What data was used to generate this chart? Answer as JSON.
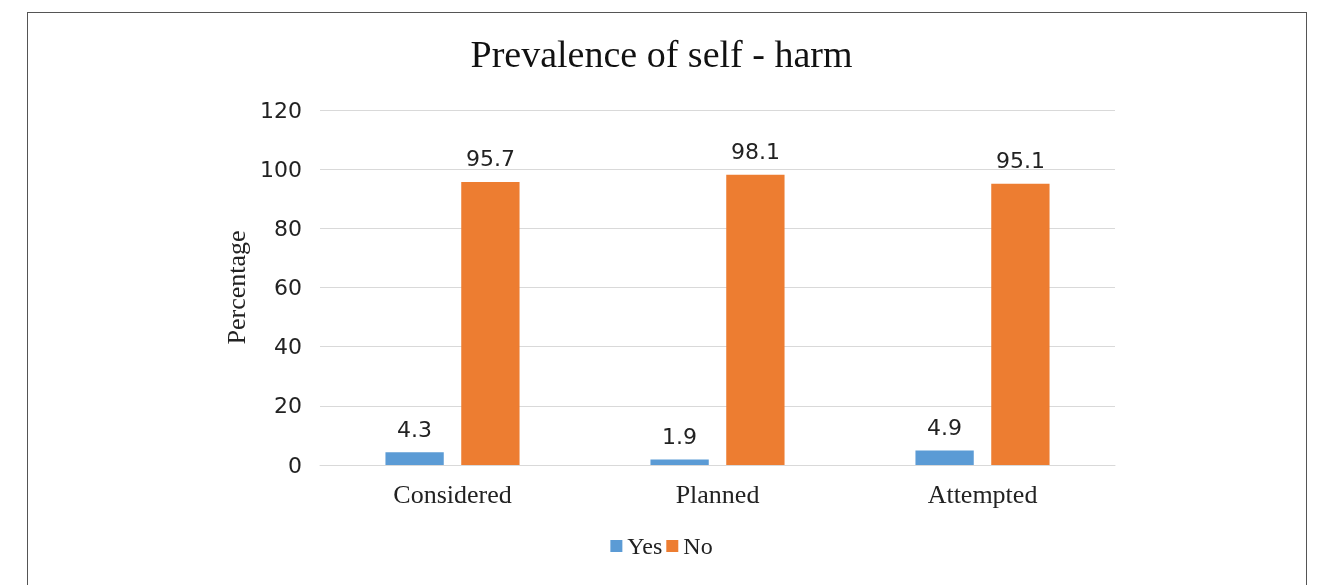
{
  "chart_data": {
    "type": "bar",
    "title": "Prevalence of self - harm",
    "ylabel": "Percentage",
    "categories": [
      "Considered",
      "Planned",
      "Attempted"
    ],
    "series": [
      {
        "name": "Yes",
        "color": "#5b9bd5",
        "values": [
          4.3,
          1.9,
          4.9
        ]
      },
      {
        "name": "No",
        "color": "#ed7d31",
        "values": [
          95.7,
          98.1,
          95.1
        ]
      }
    ],
    "ylim": [
      0,
      120
    ],
    "yticks": [
      0,
      20,
      40,
      60,
      80,
      100,
      120
    ],
    "grid": "y",
    "legend": "bottom",
    "data_labels": true
  }
}
